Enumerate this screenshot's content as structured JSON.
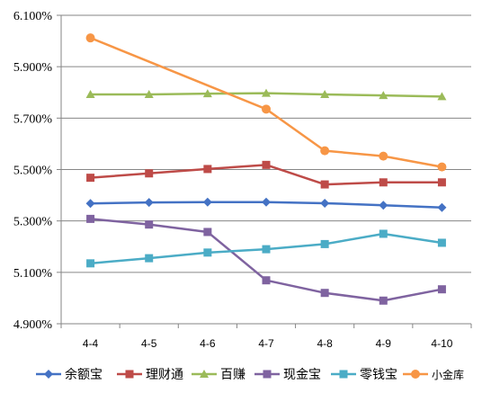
{
  "chart_data": {
    "type": "line",
    "title": "",
    "xlabel": "",
    "ylabel": "",
    "categories": [
      "4-4",
      "4-5",
      "4-6",
      "4-7",
      "4-8",
      "4-9",
      "4-10"
    ],
    "y_tick_labels": [
      "4.900%",
      "5.100%",
      "5.300%",
      "5.500%",
      "5.700%",
      "5.900%",
      "6.100%"
    ],
    "ylim": [
      4.9,
      6.1
    ],
    "y_unit": "%",
    "grid": "horizontal",
    "legend_position": "bottom",
    "series": [
      {
        "name": "余额宝",
        "color": "#4472c4",
        "marker": "diamond",
        "values": [
          5.368,
          5.372,
          5.373,
          5.373,
          5.369,
          5.361,
          5.352
        ]
      },
      {
        "name": "理财通",
        "color": "#be4b48",
        "marker": "square",
        "values": [
          5.468,
          5.485,
          5.502,
          5.518,
          5.442,
          5.45,
          5.45
        ]
      },
      {
        "name": "百赚",
        "color": "#9bbb59",
        "marker": "triangle",
        "values": [
          5.792,
          5.792,
          5.795,
          5.797,
          5.792,
          5.788,
          5.784
        ]
      },
      {
        "name": "现金宝",
        "color": "#7f63a0",
        "marker": "square",
        "values": [
          5.308,
          5.286,
          5.257,
          5.069,
          5.02,
          4.99,
          5.034
        ]
      },
      {
        "name": "零钱宝",
        "color": "#4bacc6",
        "marker": "square",
        "values": [
          5.135,
          5.155,
          5.177,
          5.19,
          5.21,
          5.25,
          5.215
        ]
      },
      {
        "name": "小金库",
        "color": "#f79646",
        "marker": "circle",
        "values": [
          6.012,
          null,
          null,
          5.735,
          5.573,
          5.552,
          5.51
        ]
      }
    ]
  }
}
